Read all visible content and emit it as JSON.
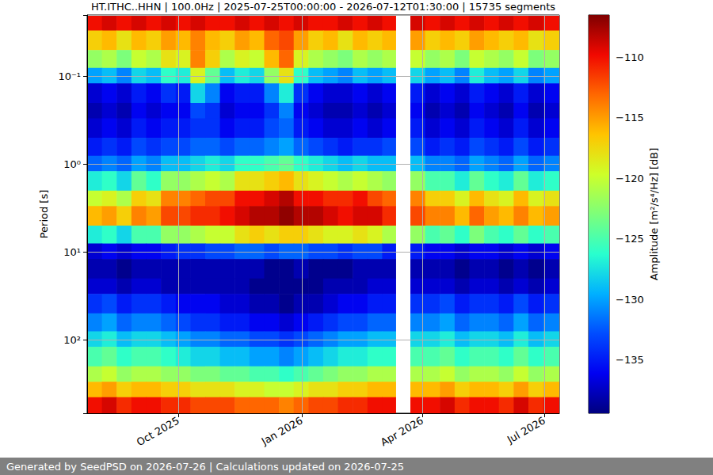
{
  "chart_data": {
    "type": "heatmap",
    "title": "HT.ITHC..HHN | 100.0Hz | 2025-07-25T00:00:00 - 2026-07-12T01:30:00 | 15735 segments",
    "footer": "Generated by SeedPSD on 2026-07-26 | Calculations updated on 2026-07-25",
    "ylabel": "Period [s]",
    "log": "y",
    "grid": true,
    "xlim": [
      "2025-07-25",
      "2026-07-12T01:30:00"
    ],
    "xticks": [
      {
        "value": "2025-10-01",
        "label": "Oct 2025"
      },
      {
        "value": "2026-01-01",
        "label": "Jan 2026"
      },
      {
        "value": "2026-04-01",
        "label": "Apr 2026"
      },
      {
        "value": "2026-07-01",
        "label": "Jul 2026"
      }
    ],
    "ylim": [
      0.02,
      686
    ],
    "yticks": [
      {
        "value": 0.1,
        "label": "10⁻¹"
      },
      {
        "value": 1,
        "label": "10⁰"
      },
      {
        "value": 10,
        "label": "10¹"
      },
      {
        "value": 100,
        "label": "10²"
      }
    ],
    "x_bins": [
      "2025-07-25",
      "2025-08-05",
      "2025-08-16",
      "2025-08-27",
      "2025-09-07",
      "2025-09-18",
      "2025-09-29",
      "2025-10-10",
      "2025-10-21",
      "2025-11-01",
      "2025-11-12",
      "2025-11-23",
      "2025-12-04",
      "2025-12-15",
      "2025-12-26",
      "2026-01-06",
      "2026-01-17",
      "2026-01-28",
      "2026-02-08",
      "2026-02-19",
      "2026-03-02",
      "2026-03-12",
      "2026-03-23",
      "2026-04-03",
      "2026-04-14",
      "2026-04-25",
      "2026-05-06",
      "2026-05-17",
      "2026-05-28",
      "2026-06-08",
      "2026-06-19",
      "2026-06-30",
      "2026-07-12T01:30:00"
    ],
    "y_bins": [
      0.02,
      0.03,
      0.05,
      0.08,
      0.12,
      0.2,
      0.3,
      0.5,
      0.8,
      1.2,
      2,
      3,
      5,
      8,
      12,
      20,
      30,
      50,
      80,
      120,
      200,
      300,
      450,
      686
    ],
    "cells": [
      [
        -110,
        -109,
        -110,
        -109,
        -110,
        -109,
        -110,
        -109,
        -110,
        -110,
        -109,
        -110,
        -109,
        -110,
        -109,
        -110,
        -110,
        -109,
        -110,
        -109,
        -110,
        null,
        -109,
        -110,
        -109,
        -110,
        -109,
        -110,
        -109,
        -110,
        -109,
        -110
      ],
      [
        -117,
        -116,
        -118,
        -116,
        -117,
        -115,
        -116,
        -114,
        -116,
        -117,
        -115,
        -116,
        -113,
        -112,
        -115,
        -117,
        -116,
        -118,
        -116,
        -117,
        -116,
        null,
        -115,
        -117,
        -116,
        -117,
        -115,
        -116,
        -117,
        -116,
        -118,
        -117
      ],
      [
        -122,
        -121,
        -123,
        -120,
        -121,
        -118,
        -119,
        -114,
        -117,
        -121,
        -119,
        -120,
        -116,
        -113,
        -119,
        -121,
        -122,
        -123,
        -121,
        -122,
        -121,
        null,
        -120,
        -122,
        -121,
        -123,
        -120,
        -121,
        -122,
        -120,
        -123,
        -122
      ],
      [
        -130,
        -129,
        -131,
        -128,
        -129,
        -126,
        -127,
        -119,
        -124,
        -129,
        -127,
        -128,
        -122,
        -118,
        -126,
        -129,
        -130,
        -131,
        -129,
        -130,
        -129,
        null,
        -128,
        -130,
        -129,
        -131,
        -127,
        -129,
        -130,
        -128,
        -131,
        -130
      ],
      [
        -137,
        -136,
        -137,
        -135,
        -136,
        -134,
        -135,
        -128,
        -131,
        -136,
        -135,
        -135,
        -131,
        -127,
        -134,
        -136,
        -137,
        -137,
        -136,
        -137,
        -136,
        null,
        -135,
        -137,
        -136,
        -137,
        -135,
        -136,
        -137,
        -135,
        -137,
        -136
      ],
      [
        -138,
        -137,
        -138,
        -136,
        -137,
        -136,
        -136,
        -133,
        -134,
        -137,
        -136,
        -136,
        -134,
        -131,
        -136,
        -137,
        -138,
        -138,
        -137,
        -138,
        -137,
        null,
        -136,
        -138,
        -137,
        -138,
        -136,
        -137,
        -138,
        -136,
        -138,
        -137
      ],
      [
        -137,
        -136,
        -137,
        -135,
        -136,
        -135,
        -135,
        -134,
        -134,
        -136,
        -135,
        -135,
        -133,
        -132,
        -135,
        -136,
        -137,
        -137,
        -136,
        -137,
        -136,
        null,
        -135,
        -137,
        -136,
        -137,
        -135,
        -136,
        -137,
        -135,
        -137,
        -136
      ],
      [
        -135,
        -134,
        -135,
        -133,
        -134,
        -133,
        -133,
        -132,
        -132,
        -133,
        -132,
        -132,
        -131,
        -130,
        -132,
        -133,
        -134,
        -135,
        -134,
        -134,
        -133,
        null,
        -133,
        -135,
        -134,
        -135,
        -133,
        -134,
        -135,
        -133,
        -135,
        -134
      ],
      [
        -132,
        -131,
        -132,
        -130,
        -131,
        -129,
        -129,
        -128,
        -127,
        -128,
        -126,
        -126,
        -125,
        -124,
        -126,
        -127,
        -128,
        -129,
        -128,
        -129,
        -129,
        null,
        -129,
        -131,
        -131,
        -132,
        -130,
        -131,
        -132,
        -130,
        -132,
        -131
      ],
      [
        -127,
        -126,
        -128,
        -124,
        -126,
        -122,
        -122,
        -121,
        -120,
        -121,
        -118,
        -118,
        -117,
        -116,
        -118,
        -119,
        -120,
        -121,
        -120,
        -121,
        -122,
        null,
        -122,
        -125,
        -125,
        -127,
        -124,
        -126,
        -127,
        -124,
        -127,
        -126
      ],
      [
        -120,
        -119,
        -121,
        -117,
        -118,
        -114,
        -114,
        -113,
        -112,
        -112,
        -110,
        -110,
        -109,
        -108,
        -110,
        -110,
        -111,
        -111,
        -110,
        -112,
        -113,
        null,
        -114,
        -117,
        -117,
        -119,
        -116,
        -118,
        -119,
        -116,
        -119,
        -118
      ],
      [
        -116,
        -115,
        -117,
        -114,
        -115,
        -112,
        -112,
        -111,
        -111,
        -110,
        -109,
        -108,
        -108,
        -107,
        -108,
        -108,
        -109,
        -110,
        -109,
        -109,
        -111,
        null,
        -112,
        -114,
        -114,
        -116,
        -113,
        -115,
        -116,
        -114,
        -116,
        -115
      ],
      [
        -127,
        -126,
        -128,
        -125,
        -125,
        -122,
        -122,
        -121,
        -120,
        -120,
        -118,
        -117,
        -118,
        -117,
        -117,
        -118,
        -119,
        -119,
        -118,
        -119,
        -121,
        null,
        -122,
        -125,
        -124,
        -126,
        -123,
        -125,
        -126,
        -124,
        -126,
        -125
      ],
      [
        -137,
        -136,
        -137,
        -136,
        -136,
        -135,
        -134,
        -134,
        -133,
        -133,
        -132,
        -132,
        -133,
        -132,
        -132,
        -133,
        -133,
        -134,
        -133,
        -133,
        -135,
        null,
        -135,
        -136,
        -136,
        -137,
        -136,
        -136,
        -137,
        -136,
        -137,
        -136
      ],
      [
        -138,
        -138,
        -139,
        -138,
        -138,
        -138,
        -138,
        -138,
        -138,
        -138,
        -138,
        -138,
        -139,
        -139,
        -138,
        -139,
        -139,
        -139,
        -138,
        -138,
        -138,
        null,
        -138,
        -138,
        -138,
        -139,
        -138,
        -138,
        -139,
        -138,
        -139,
        -138
      ],
      [
        -137,
        -137,
        -138,
        -137,
        -137,
        -138,
        -138,
        -138,
        -138,
        -138,
        -138,
        -139,
        -139,
        -139,
        -139,
        -139,
        -138,
        -138,
        -138,
        -137,
        -137,
        null,
        -137,
        -137,
        -137,
        -138,
        -137,
        -137,
        -138,
        -137,
        -138,
        -137
      ],
      [
        -134,
        -133,
        -135,
        -134,
        -134,
        -135,
        -136,
        -136,
        -136,
        -137,
        -137,
        -138,
        -138,
        -139,
        -138,
        -138,
        -137,
        -136,
        -136,
        -135,
        -135,
        null,
        -134,
        -134,
        -133,
        -135,
        -134,
        -134,
        -135,
        -133,
        -135,
        -134
      ],
      [
        -131,
        -130,
        -132,
        -131,
        -131,
        -132,
        -133,
        -134,
        -134,
        -135,
        -135,
        -136,
        -136,
        -137,
        -136,
        -135,
        -134,
        -133,
        -133,
        -132,
        -132,
        null,
        -131,
        -131,
        -130,
        -132,
        -131,
        -131,
        -132,
        -130,
        -132,
        -131
      ],
      [
        -128,
        -127,
        -129,
        -128,
        -128,
        -129,
        -130,
        -131,
        -131,
        -132,
        -132,
        -133,
        -133,
        -134,
        -133,
        -132,
        -131,
        -130,
        -130,
        -129,
        -129,
        null,
        -128,
        -128,
        -127,
        -129,
        -128,
        -128,
        -129,
        -127,
        -129,
        -128
      ],
      [
        -125,
        -124,
        -126,
        -125,
        -125,
        -126,
        -127,
        -128,
        -128,
        -129,
        -129,
        -130,
        -130,
        -131,
        -130,
        -129,
        -128,
        -127,
        -127,
        -126,
        -126,
        null,
        -125,
        -125,
        -124,
        -126,
        -125,
        -125,
        -126,
        -124,
        -126,
        -125
      ],
      [
        -121,
        -120,
        -122,
        -121,
        -121,
        -122,
        -122,
        -123,
        -123,
        -124,
        -124,
        -125,
        -125,
        -126,
        -125,
        -124,
        -123,
        -122,
        -122,
        -121,
        -121,
        null,
        -121,
        -121,
        -120,
        -122,
        -121,
        -121,
        -122,
        -120,
        -122,
        -121
      ],
      [
        -116,
        -115,
        -117,
        -116,
        -116,
        -117,
        -117,
        -118,
        -118,
        -118,
        -119,
        -119,
        -120,
        -120,
        -119,
        -118,
        -118,
        -117,
        -117,
        -116,
        -116,
        null,
        -116,
        -116,
        -115,
        -117,
        -116,
        -116,
        -117,
        -115,
        -117,
        -116
      ],
      [
        -110,
        -109,
        -111,
        -110,
        -110,
        -111,
        -111,
        -112,
        -112,
        -112,
        -113,
        -113,
        -113,
        -114,
        -113,
        -112,
        -112,
        -111,
        -111,
        -110,
        -110,
        null,
        -110,
        -110,
        -109,
        -111,
        -110,
        -110,
        -111,
        -109,
        -111,
        -110
      ]
    ],
    "colorbar": {
      "label": "Amplitude [m²/s⁴/Hz] [dB]",
      "range": [
        -139.4,
        -106.5
      ],
      "ticks": [
        {
          "value": -135,
          "label": "−135"
        },
        {
          "value": -130,
          "label": "−130"
        },
        {
          "value": -125,
          "label": "−125"
        },
        {
          "value": -120,
          "label": "−120"
        },
        {
          "value": -115,
          "label": "−115"
        },
        {
          "value": -110,
          "label": "−110"
        }
      ]
    }
  }
}
